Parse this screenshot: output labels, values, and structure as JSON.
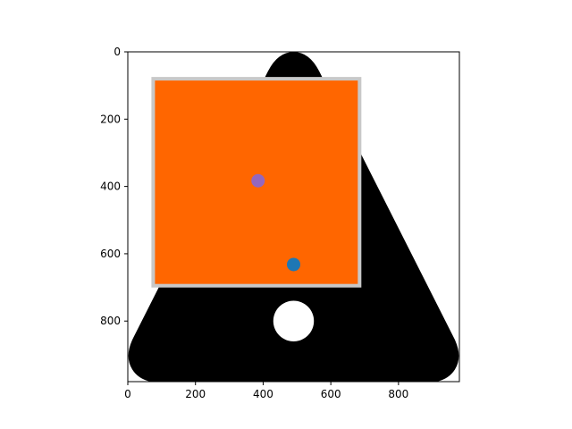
{
  "chart_data": {
    "type": "scatter",
    "title": "",
    "xlabel": "",
    "ylabel": "",
    "xlim": [
      0,
      980
    ],
    "ylim": [
      980,
      0
    ],
    "y_inverted": true,
    "grid": false,
    "xticks": [
      0,
      200,
      400,
      600,
      800
    ],
    "yticks": [
      0,
      200,
      400,
      600,
      800
    ],
    "background_shape": {
      "kind": "rounded-triangle",
      "color": "#000000",
      "vertices": [
        [
          490,
          25
        ],
        [
          35,
          930
        ],
        [
          945,
          930
        ]
      ],
      "hole": {
        "cx": 490,
        "cy": 800,
        "r": 60,
        "color": "#ffffff"
      }
    },
    "rectangle": {
      "x0": 75,
      "y0": 80,
      "x1": 685,
      "y1": 695,
      "fill": "#ff6600",
      "edgecolor": "#c8c8c8"
    },
    "points": [
      {
        "x": 385,
        "y": 383,
        "color": "#9467bd"
      },
      {
        "x": 490,
        "y": 632,
        "color": "#1f77b4"
      }
    ]
  }
}
